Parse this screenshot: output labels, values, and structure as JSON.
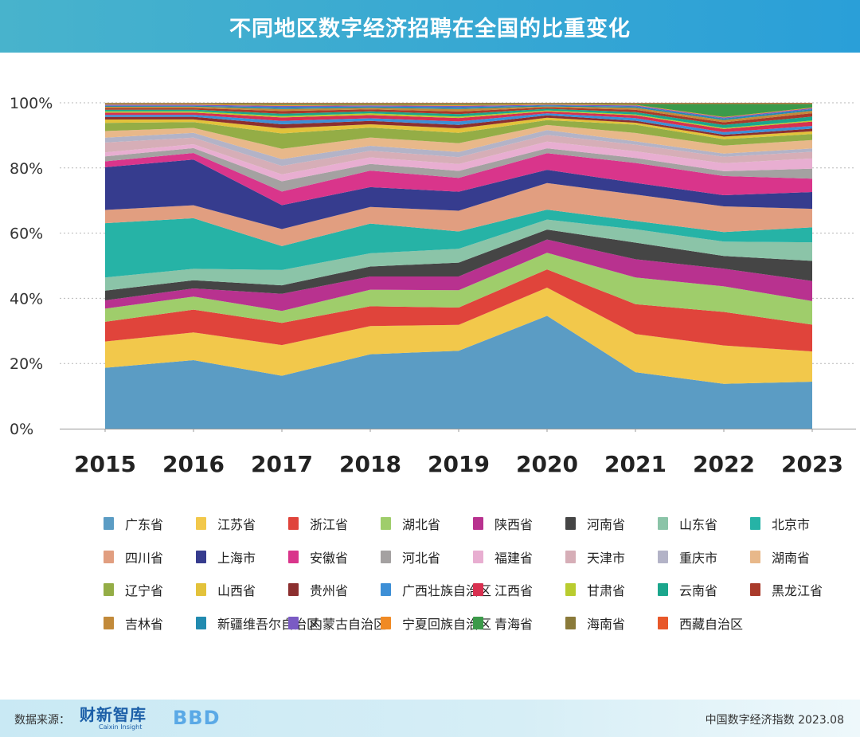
{
  "header": {
    "title": "不同地区数字经济招聘在全国的比重变化"
  },
  "footer": {
    "source_label": "数据来源：",
    "logo1_text": "财新智库",
    "logo1_sub": "Caixin Insight",
    "logo2_text": "BBD",
    "right_text": "中国数字经济指数 2023.08"
  },
  "chart_data": {
    "type": "area",
    "stacked": true,
    "normalized": true,
    "title": "不同地区数字经济招聘在全国的比重变化",
    "x": [
      "2015",
      "2016",
      "2017",
      "2018",
      "2019",
      "2020",
      "2021",
      "2022",
      "2023"
    ],
    "ylim": [
      0,
      100
    ],
    "yticks": [
      "0%",
      "20%",
      "40%",
      "60%",
      "80%",
      "100%"
    ],
    "series": [
      {
        "name": "广东省",
        "color": "#5b9cc4",
        "values": [
          18.5,
          21,
          15.5,
          22.5,
          22.5,
          34,
          17,
          14,
          14
        ]
      },
      {
        "name": "江苏省",
        "color": "#f2c84b",
        "values": [
          8,
          8.5,
          9,
          8.5,
          7.5,
          8.5,
          11.5,
          12,
          9
        ]
      },
      {
        "name": "浙江省",
        "color": "#e0443b",
        "values": [
          6,
          7,
          6.5,
          6,
          5,
          5.5,
          9,
          10.5,
          8
        ]
      },
      {
        "name": "湖北省",
        "color": "#9fcd6b",
        "values": [
          4,
          4,
          3.5,
          5,
          5,
          5,
          8,
          8,
          7
        ]
      },
      {
        "name": "陕西省",
        "color": "#b8328f",
        "values": [
          2.5,
          2.5,
          5,
          4,
          4,
          4,
          5.5,
          5.5,
          6
        ]
      },
      {
        "name": "河南省",
        "color": "#454545",
        "values": [
          3,
          2.5,
          2.5,
          3,
          4,
          3,
          5,
          4,
          6
        ]
      },
      {
        "name": "山东省",
        "color": "#8bc4a8",
        "values": [
          4,
          3.5,
          4.5,
          4,
          4,
          3,
          4,
          4.5,
          5.5
        ]
      },
      {
        "name": "北京市",
        "color": "#26b3a6",
        "values": [
          16.5,
          15.5,
          7,
          9,
          5,
          3,
          2.5,
          3,
          4.5
        ]
      },
      {
        "name": "四川省",
        "color": "#e19e80",
        "values": [
          4,
          4,
          5,
          5,
          6,
          8,
          8,
          8,
          5.5
        ]
      },
      {
        "name": "上海市",
        "color": "#363c8e",
        "values": [
          13,
          14,
          7,
          6,
          5.5,
          4,
          3.5,
          3.5,
          5
        ]
      },
      {
        "name": "安徽省",
        "color": "#d9358b",
        "values": [
          1.8,
          2,
          4,
          5,
          4,
          5,
          6,
          6,
          4
        ]
      },
      {
        "name": "河北省",
        "color": "#a4a1a1",
        "values": [
          1.5,
          1.5,
          3,
          2,
          2,
          1.5,
          1.5,
          1.5,
          3
        ]
      },
      {
        "name": "福建省",
        "color": "#e8aed1",
        "values": [
          1.2,
          1.2,
          2,
          2,
          2,
          2,
          2,
          2.5,
          3
        ]
      },
      {
        "name": "天津市",
        "color": "#d6aeb7",
        "values": [
          3,
          2,
          2.5,
          2,
          2,
          2,
          2,
          2,
          2
        ]
      },
      {
        "name": "重庆市",
        "color": "#b3b3c7",
        "values": [
          1.5,
          1.5,
          2,
          1.5,
          1.5,
          1.5,
          1,
          1,
          1
        ]
      },
      {
        "name": "湖南省",
        "color": "#e8b88a",
        "values": [
          2,
          1.5,
          3,
          2.5,
          2.5,
          1.5,
          2.5,
          2.5,
          2.5
        ]
      },
      {
        "name": "辽宁省",
        "color": "#94ad46",
        "values": [
          2.5,
          1.8,
          4.5,
          3,
          3,
          1.5,
          2.5,
          2,
          1.8
        ]
      },
      {
        "name": "山西省",
        "color": "#e3c23b",
        "values": [
          1,
          0.8,
          1.5,
          1,
          1.3,
          0.7,
          0.6,
          0.8,
          0.8
        ]
      },
      {
        "name": "贵州省",
        "color": "#8c2f2f",
        "values": [
          0.8,
          0.8,
          1.2,
          1,
          1,
          0.7,
          0.6,
          0.6,
          0.8
        ]
      },
      {
        "name": "广西壮族自治区",
        "color": "#3d8fd6",
        "values": [
          0.6,
          0.6,
          1,
          0.8,
          1,
          0.6,
          0.8,
          0.8,
          0.8
        ]
      },
      {
        "name": "江西省",
        "color": "#d83050",
        "values": [
          0.7,
          0.7,
          1,
          1,
          1,
          0.6,
          0.8,
          1,
          1.3
        ]
      },
      {
        "name": "甘肃省",
        "color": "#b9cc2f",
        "values": [
          0.4,
          0.4,
          0.4,
          0.5,
          0.4,
          0.3,
          0.3,
          0.3,
          0.3
        ]
      },
      {
        "name": "云南省",
        "color": "#1ba68c",
        "values": [
          0.5,
          0.5,
          0.7,
          0.6,
          0.7,
          0.5,
          0.7,
          1,
          1.2
        ]
      },
      {
        "name": "黑龙江省",
        "color": "#a93a2a",
        "values": [
          0.5,
          0.5,
          0.8,
          0.6,
          0.8,
          0.4,
          0.7,
          0.8,
          1
        ]
      },
      {
        "name": "吉林省",
        "color": "#c28a3a",
        "values": [
          0.4,
          0.4,
          0.6,
          0.5,
          0.7,
          0.3,
          0.6,
          0.7,
          0.7
        ]
      },
      {
        "name": "新疆维吾尔自治区",
        "color": "#228bb0",
        "values": [
          0.3,
          0.3,
          0.5,
          0.4,
          0.5,
          0.3,
          0.4,
          0.5,
          0.5
        ]
      },
      {
        "name": "内蒙古自治区",
        "color": "#7a5bc4",
        "values": [
          0.3,
          0.3,
          0.4,
          0.3,
          0.4,
          0.2,
          0.3,
          0.3,
          0.3
        ]
      },
      {
        "name": "宁夏回族自治区",
        "color": "#f08a24",
        "values": [
          0.2,
          0.2,
          0.3,
          0.2,
          0.3,
          0.2,
          0.2,
          0.2,
          0.2
        ]
      },
      {
        "name": "青海省",
        "color": "#3c9a4a",
        "values": [
          0.1,
          0.1,
          0.2,
          0.2,
          0.2,
          0.1,
          0.2,
          4,
          1
        ]
      },
      {
        "name": "海南省",
        "color": "#8a7a3a",
        "values": [
          0.2,
          0.2,
          0.3,
          0.3,
          0.3,
          0.2,
          0.3,
          0.3,
          0.3
        ]
      },
      {
        "name": "西藏自治区",
        "color": "#e8582a",
        "values": [
          0.1,
          0.1,
          0.1,
          0.1,
          0.1,
          0.1,
          0.1,
          0.1,
          0.1
        ]
      }
    ]
  }
}
